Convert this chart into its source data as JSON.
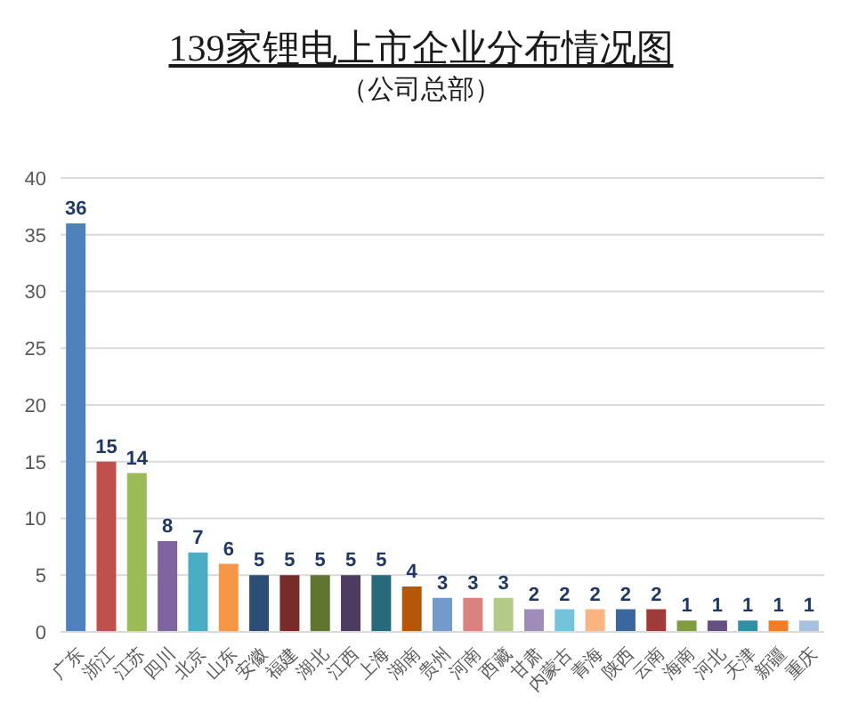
{
  "chart_data": {
    "type": "bar",
    "title": "139家锂电上市企业分布情况图",
    "subtitle": "（公司总部）",
    "categories": [
      "广东",
      "浙江",
      "江苏",
      "四川",
      "北京",
      "山东",
      "安徽",
      "福建",
      "湖北",
      "江西",
      "上海",
      "湖南",
      "贵州",
      "河南",
      "西藏",
      "甘肃",
      "内蒙古",
      "青海",
      "陕西",
      "云南",
      "海南",
      "河北",
      "天津",
      "新疆",
      "重庆"
    ],
    "values": [
      36,
      15,
      14,
      8,
      7,
      6,
      5,
      5,
      5,
      5,
      5,
      4,
      3,
      3,
      3,
      2,
      2,
      2,
      2,
      2,
      1,
      1,
      1,
      1,
      1
    ],
    "colors": [
      "#4f81bd",
      "#c0504d",
      "#9bbb59",
      "#8064a2",
      "#4bacc6",
      "#f79646",
      "#2c4d75",
      "#772c2a",
      "#5f7530",
      "#4d3b62",
      "#276a7c",
      "#b65708",
      "#729aca",
      "#d9827f",
      "#b3cb86",
      "#9f8cba",
      "#73c4da",
      "#f9b482",
      "#3a679c",
      "#9f3c3a",
      "#7f9c40",
      "#664f82",
      "#358ea6",
      "#f37d22",
      "#a8c0df"
    ],
    "ylim": [
      0,
      40
    ],
    "yticks": [
      0,
      5,
      10,
      15,
      20,
      25,
      30,
      35,
      40
    ],
    "grid": "y",
    "data_labels": true
  }
}
